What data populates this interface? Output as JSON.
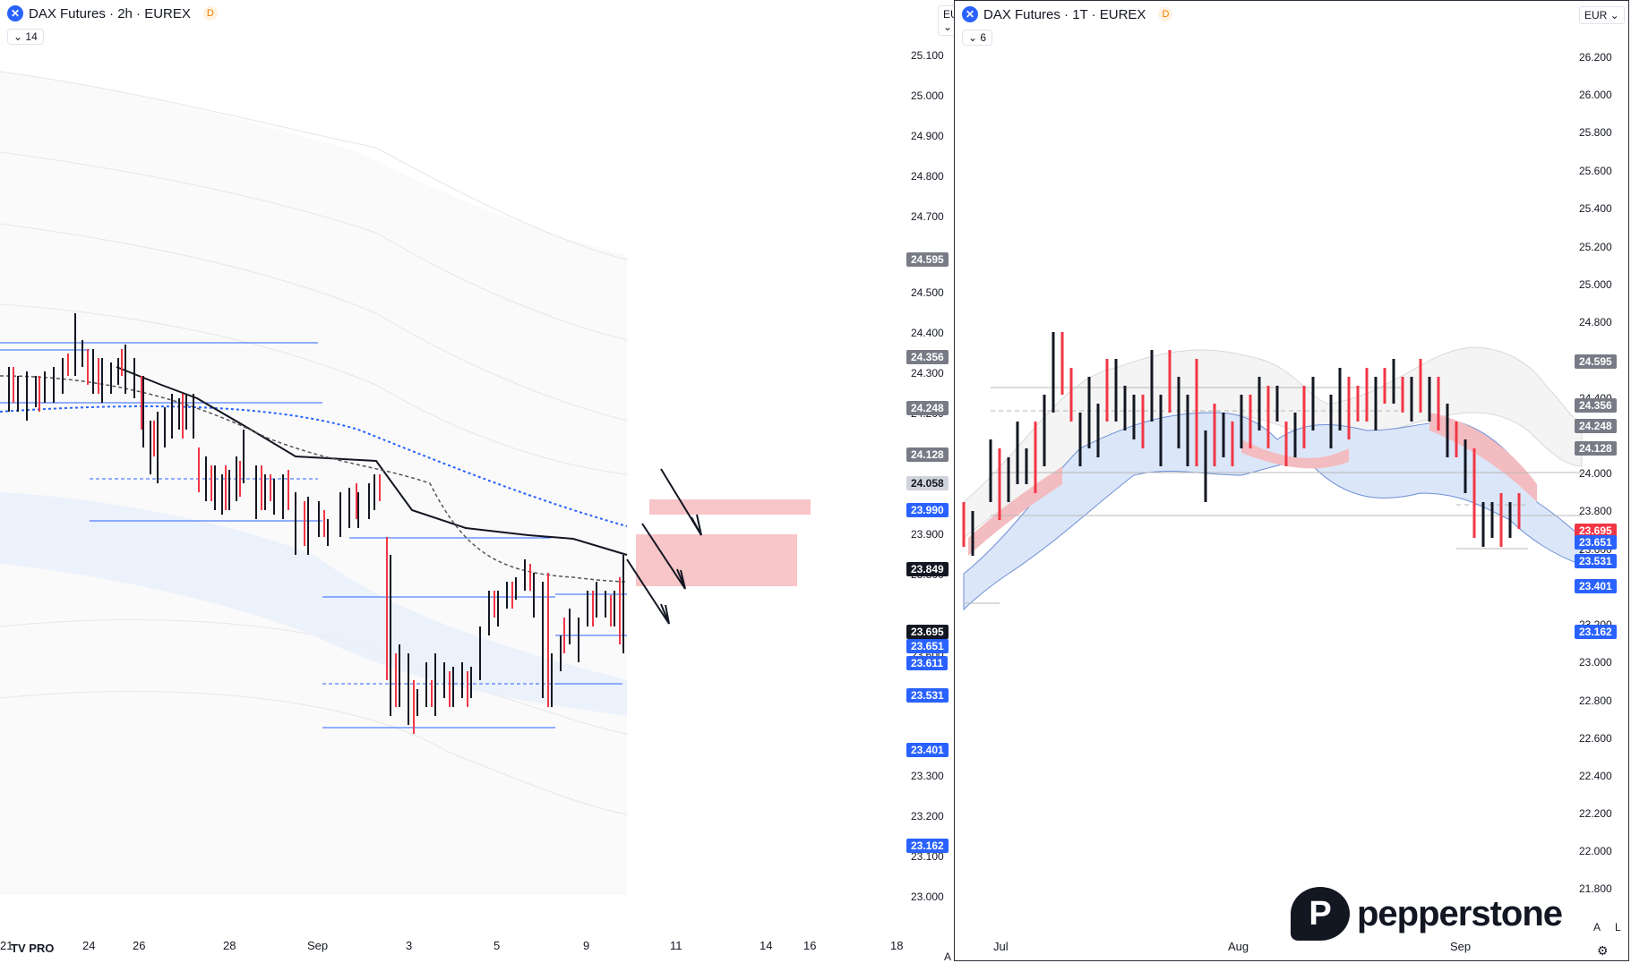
{
  "left": {
    "symbol": "DAX Futures · 2h · EUREX",
    "badge": "D",
    "indicator_toggle": "14",
    "currency": "EUR",
    "price_ticks": [
      "25.100",
      "25.000",
      "24.900",
      "24.800",
      "24.700",
      "24.500",
      "24.400",
      "24.300",
      "24.200",
      "24.100",
      "23.900",
      "23.800",
      "23.600",
      "23.500",
      "23.300",
      "23.200",
      "23.100",
      "23.000"
    ],
    "badges": [
      {
        "text": "24.595",
        "color": "#787b86"
      },
      {
        "text": "24.356",
        "color": "#787b86"
      },
      {
        "text": "24.248",
        "color": "#787b86"
      },
      {
        "text": "24.128",
        "color": "#787b86"
      },
      {
        "text": "24.058",
        "color": "#d1d4dc"
      },
      {
        "text": "23.990",
        "color": "#2962ff"
      },
      {
        "text": "23.849",
        "color": "#131722"
      },
      {
        "text": "23.695",
        "color": "#131722"
      },
      {
        "text": "23.651",
        "color": "#2962ff"
      },
      {
        "text": "23.611",
        "color": "#2962ff"
      },
      {
        "text": "23.531",
        "color": "#2962ff"
      },
      {
        "text": "23.401",
        "color": "#2962ff"
      },
      {
        "text": "23.162",
        "color": "#2962ff"
      }
    ],
    "time_labels": [
      "21",
      "24",
      "26",
      "28",
      "Sep",
      "3",
      "5",
      "9",
      "11",
      "14",
      "16",
      "18"
    ],
    "logo": "TV PRO",
    "auto_btn": "A",
    "log_btn": "L"
  },
  "right": {
    "symbol": "DAX Futures · 1T · EUREX",
    "badge": "D",
    "indicator_toggle": "6",
    "currency": "EUR",
    "price_ticks": [
      "26.200",
      "26.000",
      "25.800",
      "25.600",
      "25.400",
      "25.200",
      "25.000",
      "24.800",
      "24.400",
      "24.000",
      "23.800",
      "23.600",
      "23.200",
      "23.000",
      "22.800",
      "22.600",
      "22.400",
      "22.200",
      "22.000",
      "21.800"
    ],
    "badges": [
      {
        "text": "24.595",
        "color": "#787b86"
      },
      {
        "text": "24.356",
        "color": "#787b86"
      },
      {
        "text": "24.248",
        "color": "#787b86"
      },
      {
        "text": "24.128",
        "color": "#787b86"
      },
      {
        "text": "23.695",
        "color": "#f23645"
      },
      {
        "text": "23.651",
        "color": "#2962ff"
      },
      {
        "text": "23.531",
        "color": "#2962ff"
      },
      {
        "text": "23.401",
        "color": "#2962ff"
      },
      {
        "text": "23.162",
        "color": "#2962ff"
      }
    ],
    "time_labels": [
      "Jul",
      "Aug",
      "Sep"
    ],
    "brand": "pepperstone",
    "auto_btn": "A",
    "log_btn": "L"
  },
  "colors": {
    "up": "#131722",
    "down": "#f23645",
    "blue": "#2962ff",
    "zone": "#f8c5c8"
  }
}
